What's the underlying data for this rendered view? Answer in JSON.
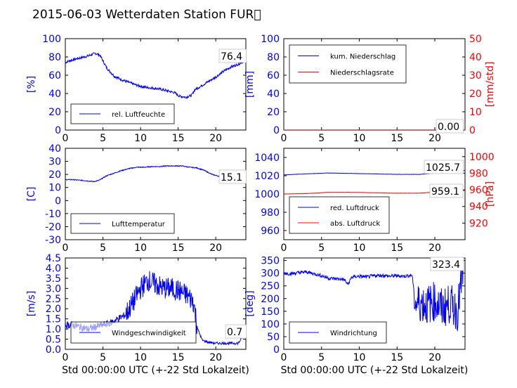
{
  "title": "2015-06-03 Wetterdaten Station FUR\u0000",
  "chart_data": [
    {
      "type": "line",
      "panel": "humidity",
      "xlim": [
        0,
        24
      ],
      "xticks": [
        0,
        5,
        10,
        15,
        20
      ],
      "ylim": [
        0,
        100
      ],
      "yticks": [
        0,
        20,
        40,
        60,
        80,
        100
      ],
      "ylabel": "[%]",
      "legend_placement": "lower-left",
      "annotation": "76.4",
      "series": [
        {
          "name": "rel. Luftfeuchte",
          "color": "#0000ff",
          "x": [
            0,
            1,
            2,
            3,
            4,
            4.6,
            5.5,
            6.5,
            7.5,
            8.5,
            9.5,
            10.5,
            11.5,
            12.5,
            13.5,
            14.5,
            15.2,
            16,
            16.8,
            17.2,
            18,
            19,
            20,
            21,
            22,
            23,
            23.8
          ],
          "y": [
            74,
            77,
            79,
            81,
            84,
            82,
            68,
            59,
            55,
            52,
            49,
            47,
            46,
            45,
            43,
            41,
            37,
            36,
            38,
            44,
            48,
            53,
            58,
            64,
            69,
            72,
            76
          ]
        }
      ]
    },
    {
      "type": "line",
      "panel": "precipitation",
      "xlim": [
        0,
        24
      ],
      "xticks": [
        0,
        5,
        10,
        15,
        20
      ],
      "ylim": [
        0,
        100
      ],
      "yticks": [
        0,
        20,
        40,
        60,
        80,
        100
      ],
      "ylabel": "[mm]",
      "ylim_right": [
        0,
        50
      ],
      "yticks_right": [
        0,
        10,
        20,
        30,
        40,
        50
      ],
      "ylabel_right": "[mm/std]",
      "legend_placement": "upper-left",
      "annotation": "0.00",
      "series": [
        {
          "name": "kum. Niederschlag",
          "color": "#0000ff",
          "x": [
            0,
            24
          ],
          "y": [
            0,
            0
          ]
        },
        {
          "name": "Niederschlagsrate",
          "color": "#ff0000",
          "x": [
            0,
            24
          ],
          "y": [
            0,
            0
          ]
        }
      ]
    },
    {
      "type": "line",
      "panel": "temperature",
      "xlim": [
        0,
        24
      ],
      "xticks": [
        0,
        5,
        10,
        15,
        20
      ],
      "ylim": [
        -30,
        40
      ],
      "yticks": [
        -30,
        -20,
        -10,
        0,
        10,
        20,
        30,
        40
      ],
      "ylabel": "[C]",
      "legend_placement": "lower-left",
      "annotation": "15.1",
      "series": [
        {
          "name": "Lufttemperatur",
          "color": "#0000ff",
          "x": [
            0,
            1,
            2,
            3,
            3.8,
            4.5,
            5.5,
            6.5,
            7.5,
            8.5,
            9.5,
            10.5,
            11.5,
            12.5,
            13.5,
            14.5,
            15.5,
            16.5,
            17.5,
            18.5,
            19.5,
            20.5,
            21.5,
            22.5,
            23.5
          ],
          "y": [
            16,
            16,
            15.5,
            15,
            14.5,
            15.5,
            19,
            21,
            23,
            24.5,
            25.5,
            25.5,
            26,
            26,
            26.5,
            26.5,
            26.5,
            25.5,
            25,
            23,
            20,
            18.5,
            17,
            16,
            15
          ]
        }
      ]
    },
    {
      "type": "line",
      "panel": "pressure",
      "xlim": [
        0,
        24
      ],
      "xticks": [
        0,
        5,
        10,
        15,
        20
      ],
      "ylim": [
        950,
        1050
      ],
      "yticks": [
        960,
        980,
        1000,
        1020,
        1040
      ],
      "ylim_right": [
        900,
        1010
      ],
      "yticks_right": [
        920,
        940,
        960,
        980,
        1000
      ],
      "ylabel_right": "[hPa]",
      "legend_placement": "lower-left",
      "annotations": [
        "1025.7",
        "959.1"
      ],
      "series": [
        {
          "name": "red. Luftdruck",
          "color": "#0000ff",
          "x": [
            0,
            3,
            6,
            9,
            12,
            15,
            18,
            21,
            24
          ],
          "y": [
            1021,
            1022,
            1023,
            1022.5,
            1022,
            1021.5,
            1021.5,
            1023.5,
            1025.7
          ]
        },
        {
          "name": "abs. Luftdruck",
          "color": "#ff0000",
          "axis": "right",
          "x": [
            0,
            3,
            6,
            9,
            12,
            15,
            18,
            21,
            24
          ],
          "y": [
            955,
            955.5,
            957,
            957,
            956.5,
            956,
            956,
            958,
            959.1
          ]
        }
      ]
    },
    {
      "type": "line",
      "panel": "wind-speed",
      "xlim": [
        0,
        24
      ],
      "xticks": [
        0,
        5,
        10,
        15,
        20
      ],
      "ylim": [
        0,
        4.5
      ],
      "yticks": [
        0.0,
        0.5,
        1.0,
        1.5,
        2.0,
        2.5,
        3.0,
        3.5,
        4.0,
        4.5
      ],
      "ylabel": "[m/s]",
      "xlabel": "Std 00:00:00 UTC (+-22 Std Lokalzeit)",
      "legend_placement": "lower-left",
      "annotation": "0.7",
      "series": [
        {
          "name": "Windgeschwindigkeit",
          "color": "#0000ff",
          "x": [
            0,
            1,
            2,
            3,
            4,
            5,
            6,
            7,
            8,
            9,
            10,
            11,
            12,
            13,
            14,
            15,
            16,
            17,
            17.6,
            18.2,
            19,
            20,
            21,
            22,
            23,
            23.7
          ],
          "y": [
            1.2,
            1.2,
            1.1,
            1.0,
            1.1,
            1.2,
            1.3,
            1.5,
            1.7,
            2.3,
            3.0,
            3.4,
            3.2,
            3.0,
            3.0,
            2.9,
            2.7,
            2.4,
            1.0,
            0.45,
            0.35,
            0.3,
            0.3,
            0.3,
            0.3,
            0.7
          ]
        }
      ]
    },
    {
      "type": "line",
      "panel": "wind-direction",
      "xlim": [
        0,
        24
      ],
      "xticks": [
        0,
        5,
        10,
        15,
        20
      ],
      "ylim": [
        0,
        360
      ],
      "yticks": [
        0,
        50,
        100,
        150,
        200,
        250,
        300,
        350
      ],
      "ylabel": "[deg]",
      "xlabel": "Std 00:00:00 UTC (+-22 Std Lokalzeit)",
      "legend_placement": "lower-left",
      "annotation": "323.4",
      "series": [
        {
          "name": "Windrichtung",
          "color": "#0000ff",
          "x": [
            0,
            1,
            2,
            3,
            4,
            5,
            6,
            7,
            8,
            8.5,
            9,
            10,
            11,
            12,
            13,
            14,
            15,
            16,
            17,
            17.4,
            18,
            19,
            20,
            21,
            22,
            23,
            23.8
          ],
          "y": [
            300,
            298,
            302,
            305,
            298,
            290,
            280,
            278,
            275,
            255,
            285,
            288,
            285,
            290,
            292,
            288,
            290,
            288,
            292,
            180,
            185,
            175,
            190,
            160,
            180,
            150,
            323
          ]
        }
      ]
    }
  ]
}
